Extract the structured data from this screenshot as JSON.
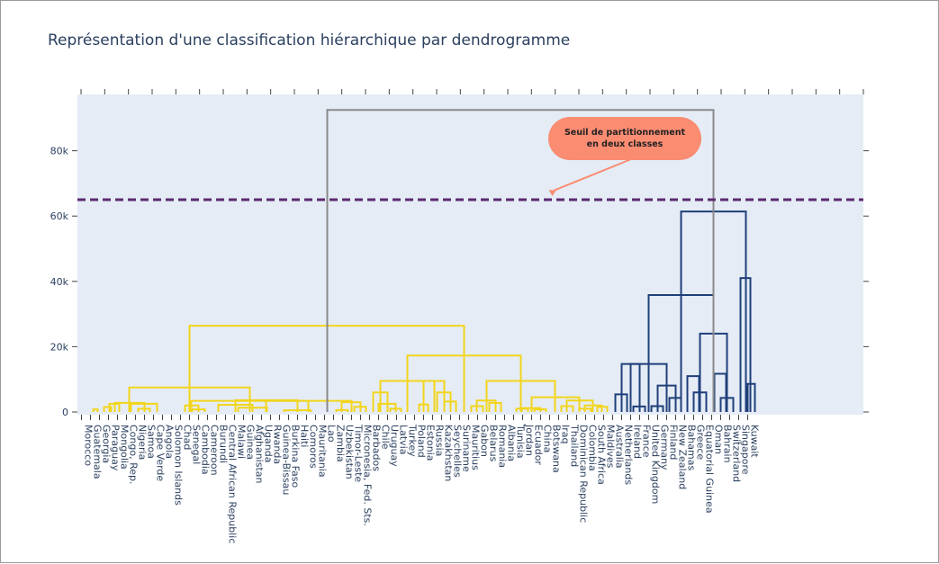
{
  "chart_title": "Représentation d'une classification hiérarchique par dendrogramme",
  "chart_data": {
    "type": "dendrogram",
    "title": "Représentation d'une classification hiérarchique par dendrogramme",
    "ylim": [
      -1000,
      96000
    ],
    "yticks": [
      0,
      20000,
      40000,
      60000,
      80000
    ],
    "ytick_labels": [
      "0",
      "20k",
      "40k",
      "60k",
      "80k"
    ],
    "grid": false,
    "leaves": [
      "Morocco",
      "Guatemala",
      "Georgia",
      "Paraguay",
      "Mongolia",
      "Congo, Rep.",
      "Nigeria",
      "Samoa",
      "Cape Verde",
      "Angola",
      "Solomon Islands",
      "Chad",
      "Senegal",
      "Cambodia",
      "Cameroon",
      "Burundi",
      "Central African Republic",
      "Malawi",
      "Guinea",
      "Afghanistan",
      "Uganda",
      "Rwanda",
      "Guinea-Bissau",
      "Burkina Faso",
      "Haiti",
      "Comoros",
      "Mauritania",
      "Lao",
      "Zambia",
      "Uzbekistan",
      "Timor-Leste",
      "Micronesia, Fed. Sts.",
      "Barbados",
      "Chile",
      "Uruguay",
      "Latvia",
      "Turkey",
      "Poland",
      "Estonia",
      "Russia",
      "Kazakhstan",
      "Seychelles",
      "Suriname",
      "Mauritius",
      "Gabon",
      "Belarus",
      "Romania",
      "Albania",
      "Tunisia",
      "Jordan",
      "Ecuador",
      "China",
      "Botswana",
      "Iraq",
      "Thailand",
      "Dominican Republic",
      "Colombia",
      "South Africa",
      "Maldives",
      "Australia",
      "Netherlands",
      "Ireland",
      "France",
      "United Kingdom",
      "Germany",
      "Finland",
      "New Zealand",
      "Bahamas",
      "Greece",
      "Equatorial Guinea",
      "Oman",
      "Bahrain",
      "Switzerland",
      "Singapore",
      "Kuwait"
    ],
    "clusters": [
      {
        "name": "",
        "color": "#f2d51b",
        "leaves": [
          0,
          58
        ]
      },
      {
        "name": "",
        "color": "#1f3f7a",
        "leaves": [
          59,
          74
        ]
      }
    ],
    "root_color": "#8a8a8a",
    "link_height_scale": 1000,
    "links": [
      {
        "x": [
          1.3,
          1.8
        ],
        "h": 0.8,
        "c": "y"
      },
      {
        "x": [
          2.5,
          3.3
        ],
        "h": 1.5,
        "c": "y"
      },
      {
        "x": [
          3.1,
          4.2
        ],
        "h": 2.5,
        "c": "y"
      },
      {
        "x": [
          6.3,
          7.6
        ],
        "h": 1.0,
        "c": "y"
      },
      {
        "x": [
          5.5,
          8.4
        ],
        "h": 2.5,
        "c": "y"
      },
      {
        "x": [
          3.7,
          7.0
        ],
        "h": 2.8,
        "c": "y"
      },
      {
        "x": [
          12.3,
          13.7
        ],
        "h": 0.8,
        "c": "y"
      },
      {
        "x": [
          11.5,
          13.0
        ],
        "h": 2.0,
        "c": "y"
      },
      {
        "x": [
          17.4,
          20.6
        ],
        "h": 1.3,
        "c": "y"
      },
      {
        "x": [
          15.2,
          19.0
        ],
        "h": 2.2,
        "c": "y"
      },
      {
        "x": [
          22.5,
          25.5
        ],
        "h": 0.5,
        "c": "y"
      },
      {
        "x": [
          17.1,
          24.0
        ],
        "h": 3.6,
        "c": "y"
      },
      {
        "x": [
          28.3,
          29.6
        ],
        "h": 0.6,
        "c": "y"
      },
      {
        "x": [
          30.3,
          31.6
        ],
        "h": 1.6,
        "c": "y"
      },
      {
        "x": [
          28.9,
          31.0
        ],
        "h": 3.0,
        "c": "y"
      },
      {
        "x": [
          20.5,
          30.0
        ],
        "h": 3.4,
        "c": "y"
      },
      {
        "x": [
          12.2,
          25.2
        ],
        "h": 3.4,
        "c": "y"
      },
      {
        "x": [
          5.3,
          18.7
        ],
        "h": 7.5,
        "c": "y"
      },
      {
        "x": [
          34.3,
          35.5
        ],
        "h": 1.0,
        "c": "y"
      },
      {
        "x": [
          33.0,
          34.9
        ],
        "h": 2.5,
        "c": "y"
      },
      {
        "x": [
          32.4,
          34.0
        ],
        "h": 6.0,
        "c": "y"
      },
      {
        "x": [
          37.5,
          38.5
        ],
        "h": 2.3,
        "c": "y"
      },
      {
        "x": [
          40.3,
          41.6
        ],
        "h": 3.2,
        "c": "y"
      },
      {
        "x": [
          39.5,
          41.0
        ],
        "h": 6.0,
        "c": "y"
      },
      {
        "x": [
          38.0,
          40.3
        ],
        "h": 9.5,
        "c": "y"
      },
      {
        "x": [
          33.2,
          39.2
        ],
        "h": 9.5,
        "c": "y"
      },
      {
        "x": [
          43.3,
          44.6
        ],
        "h": 1.8,
        "c": "y"
      },
      {
        "x": [
          45.3,
          46.6
        ],
        "h": 2.8,
        "c": "y"
      },
      {
        "x": [
          43.9,
          46.0
        ],
        "h": 3.5,
        "c": "y"
      },
      {
        "x": [
          48.3,
          49.6
        ],
        "h": 1.0,
        "c": "y"
      },
      {
        "x": [
          50.3,
          51.6
        ],
        "h": 0.8,
        "c": "y"
      },
      {
        "x": [
          48.9,
          51.0
        ],
        "h": 1.2,
        "c": "y"
      },
      {
        "x": [
          53.3,
          54.6
        ],
        "h": 1.8,
        "c": "y"
      },
      {
        "x": [
          55.3,
          56.6
        ],
        "h": 1.0,
        "c": "y"
      },
      {
        "x": [
          57.3,
          58.4
        ],
        "h": 1.6,
        "c": "y"
      },
      {
        "x": [
          55.9,
          57.8
        ],
        "h": 2.0,
        "c": "y"
      },
      {
        "x": [
          53.9,
          56.8
        ],
        "h": 3.5,
        "c": "y"
      },
      {
        "x": [
          50.0,
          55.3
        ],
        "h": 4.5,
        "c": "y"
      },
      {
        "x": [
          45.0,
          52.6
        ],
        "h": 9.5,
        "c": "y"
      },
      {
        "x": [
          36.2,
          48.8
        ],
        "h": 17.3,
        "c": "y"
      },
      {
        "x": [
          12.0,
          42.5
        ],
        "h": 26.4,
        "c": "y"
      },
      {
        "x": [
          59.3,
          60.6
        ],
        "h": 5.4,
        "c": "b"
      },
      {
        "x": [
          61.3,
          62.6
        ],
        "h": 1.7,
        "c": "b"
      },
      {
        "x": [
          60.0,
          62.0
        ],
        "h": 14.7,
        "c": "b"
      },
      {
        "x": [
          63.3,
          64.6
        ],
        "h": 1.8,
        "c": "b"
      },
      {
        "x": [
          65.3,
          66.6
        ],
        "h": 4.3,
        "c": "b"
      },
      {
        "x": [
          64.0,
          66.0
        ],
        "h": 8.1,
        "c": "b"
      },
      {
        "x": [
          61.0,
          65.0
        ],
        "h": 14.7,
        "c": "b"
      },
      {
        "x": [
          67.3,
          68.6
        ],
        "h": 11.0,
        "c": "b"
      },
      {
        "x": [
          68.0,
          69.4
        ],
        "h": 6.0,
        "c": "b"
      },
      {
        "x": [
          70.3,
          71.6
        ],
        "h": 11.7,
        "c": "b"
      },
      {
        "x": [
          71.0,
          72.4
        ],
        "h": 4.3,
        "c": "b"
      },
      {
        "x": [
          68.7,
          71.7
        ],
        "h": 24.0,
        "c": "b"
      },
      {
        "x": [
          63.0,
          70.2
        ],
        "h": 35.8,
        "c": "b"
      },
      {
        "x": [
          73.2,
          74.3
        ],
        "h": 41.0,
        "c": "b"
      },
      {
        "x": [
          74.0,
          74.8
        ],
        "h": 8.6,
        "c": "b"
      },
      {
        "x": [
          66.6,
          73.8
        ],
        "h": 61.4,
        "c": "b"
      },
      {
        "x": [
          27.3,
          70.2
        ],
        "h": 92.5,
        "c": "g"
      }
    ],
    "threshold": {
      "value": 65000,
      "color": "#5b2a6e",
      "style": "dashed"
    },
    "annotation": {
      "text_lines": [
        "Seuil de partitionnement",
        "en deux classes"
      ],
      "bg_color": "#fa8c72",
      "arrow_color": "#fa8c72",
      "target_x_leaf": 52.3,
      "target_y": 65000
    }
  }
}
